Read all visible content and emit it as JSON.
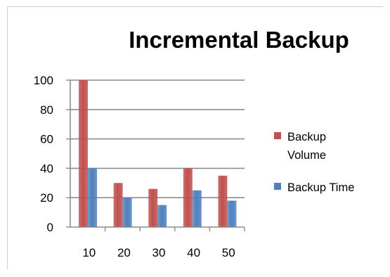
{
  "chart_data": {
    "type": "bar",
    "title": "Incremental Backup",
    "xlabel": "",
    "ylabel": "",
    "categories": [
      "10",
      "20",
      "30",
      "40",
      "50"
    ],
    "series": [
      {
        "name": "Backup Volume",
        "values": [
          100,
          30,
          26,
          40,
          35
        ],
        "color": "#c0504d"
      },
      {
        "name": "Backup Time",
        "values": [
          40,
          20,
          15,
          25,
          18
        ],
        "color": "#4f81bd"
      }
    ],
    "ylim": [
      0,
      100
    ],
    "yticks": [
      "0",
      "20",
      "40",
      "60",
      "80",
      "100"
    ],
    "grid": true,
    "legend_position": "right",
    "legend_lines": [
      [
        "Backup",
        "Volume"
      ],
      [
        "Backup Time"
      ]
    ]
  }
}
